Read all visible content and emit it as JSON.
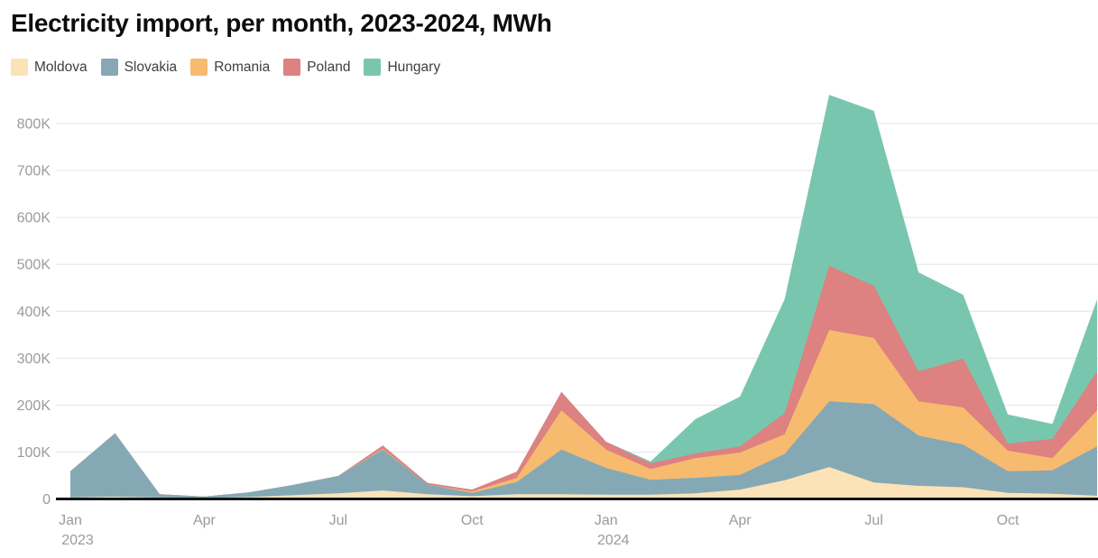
{
  "title": "Electricity import, per month, 2023-2024, MWh",
  "colors": {
    "background": "#ffffff",
    "title_text": "#0d0d0d",
    "axis_label_text": "#9b9b9b",
    "gridline": "#e4e4e4",
    "baseline": "#141414",
    "legend_text": "#3f3f3f"
  },
  "chart_data": {
    "type": "area",
    "stacked": true,
    "title": "Electricity import, per month, 2023-2024, MWh",
    "xlabel": "",
    "ylabel": "MWh",
    "ylim": [
      0,
      870000
    ],
    "grid": "horizontal",
    "legend_position": "top-left",
    "x": [
      "2023-01",
      "2023-02",
      "2023-03",
      "2023-04",
      "2023-05",
      "2023-06",
      "2023-07",
      "2023-08",
      "2023-09",
      "2023-10",
      "2023-11",
      "2023-12",
      "2024-01",
      "2024-02",
      "2024-03",
      "2024-04",
      "2024-05",
      "2024-06",
      "2024-07",
      "2024-08",
      "2024-09",
      "2024-10",
      "2024-11",
      "2024-12"
    ],
    "x_axis": {
      "ticks": [
        {
          "month_index": 0,
          "label": "Jan",
          "year": "2023"
        },
        {
          "month_index": 3,
          "label": "Apr",
          "year": ""
        },
        {
          "month_index": 6,
          "label": "Jul",
          "year": ""
        },
        {
          "month_index": 9,
          "label": "Oct",
          "year": ""
        },
        {
          "month_index": 12,
          "label": "Jan",
          "year": "2024"
        },
        {
          "month_index": 15,
          "label": "Apr",
          "year": ""
        },
        {
          "month_index": 18,
          "label": "Jul",
          "year": ""
        },
        {
          "month_index": 21,
          "label": "Oct",
          "year": ""
        }
      ]
    },
    "y_axis": {
      "ticks": [
        {
          "value": 0,
          "label": "0"
        },
        {
          "value": 100000,
          "label": "100K"
        },
        {
          "value": 200000,
          "label": "200K"
        },
        {
          "value": 300000,
          "label": "300K"
        },
        {
          "value": 400000,
          "label": "400K"
        },
        {
          "value": 500000,
          "label": "500K"
        },
        {
          "value": 600000,
          "label": "600K"
        },
        {
          "value": 700000,
          "label": "700K"
        },
        {
          "value": 800000,
          "label": "800K"
        }
      ]
    },
    "series": [
      {
        "name": "Moldova",
        "color": "#FBE3B7",
        "values": [
          3000,
          5000,
          3000,
          2000,
          4000,
          8000,
          12000,
          18000,
          10000,
          6000,
          10000,
          10000,
          9000,
          9000,
          12000,
          20000,
          40000,
          68000,
          35000,
          28000,
          25000,
          13000,
          11000,
          7000
        ]
      },
      {
        "name": "Slovakia",
        "color": "#85A8B5",
        "values": [
          56000,
          135000,
          7000,
          3000,
          10000,
          22000,
          37000,
          87000,
          21000,
          7000,
          26000,
          95000,
          57000,
          32000,
          33000,
          31000,
          56000,
          140000,
          167000,
          107000,
          91000,
          46000,
          50000,
          105000
        ]
      },
      {
        "name": "Romania",
        "color": "#F6BB6E",
        "values": [
          0,
          0,
          0,
          0,
          0,
          0,
          0,
          2000,
          0,
          3000,
          9000,
          84000,
          39000,
          23000,
          42000,
          48000,
          42000,
          152000,
          141000,
          73000,
          79000,
          44000,
          26000,
          77000
        ]
      },
      {
        "name": "Poland",
        "color": "#DD8181",
        "values": [
          0,
          0,
          0,
          0,
          0,
          0,
          0,
          7000,
          3000,
          4000,
          13000,
          39000,
          17000,
          12000,
          10000,
          13000,
          45000,
          137000,
          111000,
          64000,
          104000,
          15000,
          41000,
          83000
        ]
      },
      {
        "name": "Hungary",
        "color": "#79C6AF",
        "values": [
          0,
          0,
          0,
          0,
          0,
          0,
          0,
          0,
          0,
          0,
          0,
          0,
          0,
          4000,
          73000,
          106000,
          243000,
          364000,
          373000,
          211000,
          136000,
          62000,
          32000,
          153000
        ]
      }
    ]
  }
}
